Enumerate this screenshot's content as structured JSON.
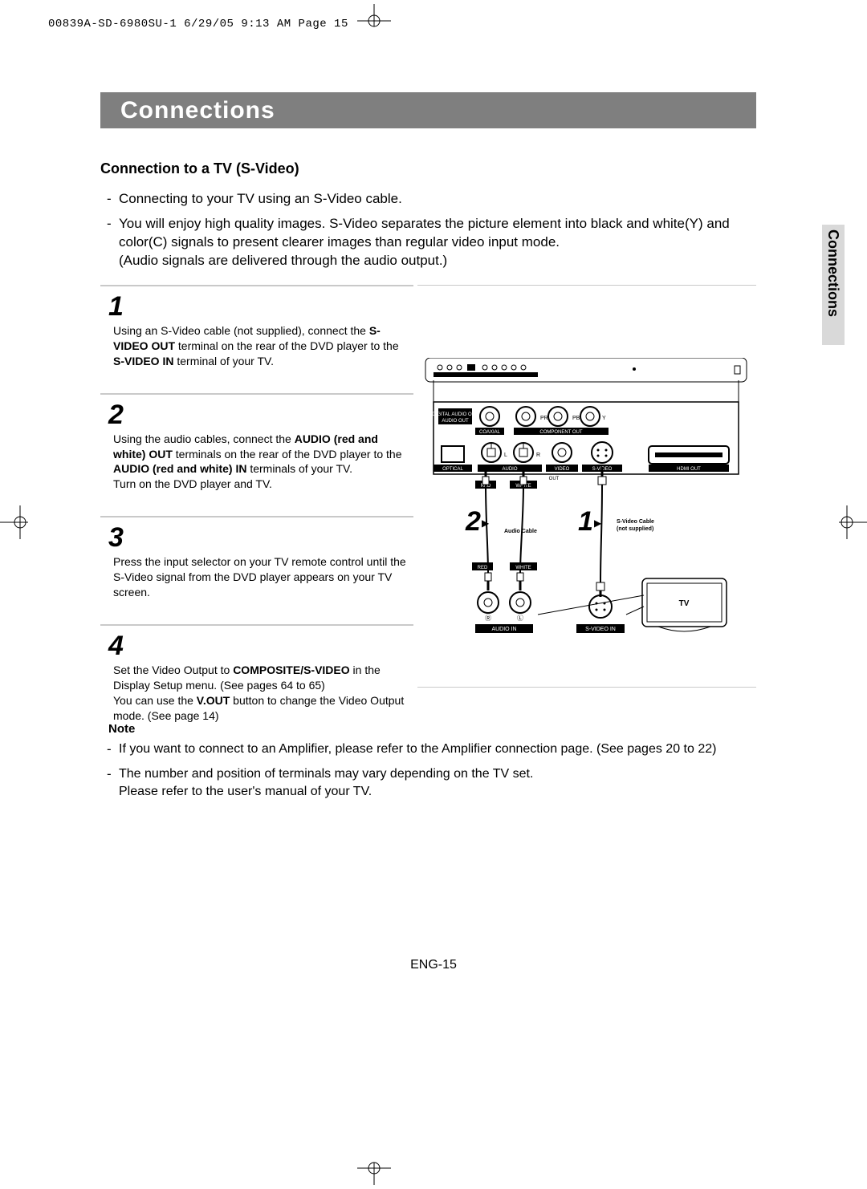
{
  "meta": {
    "header": "00839A-SD-6980SU-1  6/29/05  9:13 AM  Page 15"
  },
  "title": "Connections",
  "side_tab": "Connections",
  "subheading": "Connection to a TV (S-Video)",
  "intro": [
    "Connecting to your TV using an S-Video cable.",
    "You will enjoy high quality images. S-Video separates the picture element into black and white(Y) and color(C) signals to present clearer images than regular video input mode.\n(Audio signals are delivered through the audio output.)"
  ],
  "steps": [
    {
      "num": "1",
      "html": "Using an S-Video cable (not supplied), connect the <b>S-VIDEO OUT</b> terminal on the rear of the DVD player to the <b>S-VIDEO IN</b> terminal of your TV."
    },
    {
      "num": "2",
      "html": "Using the audio cables, connect the <b>AUDIO (red and white) OUT</b> terminals on the rear of the DVD player to the <b>AUDIO (red and white) IN</b> terminals of your TV.<br>Turn on the DVD player and TV."
    },
    {
      "num": "3",
      "html": "Press the input selector on your TV remote control until the S-Video signal from the DVD player appears on your TV screen."
    },
    {
      "num": "4",
      "html": "Set the Video Output to <b>COMPOSITE/S-VIDEO</b> in the Display Setup menu. (See pages 64 to 65)<br>You can use the <b>V.OUT</b> button to change the Video Output mode. (See page 14)"
    }
  ],
  "notes_heading": "Note",
  "notes": [
    "If you want to connect to an Amplifier, please refer to the Amplifier connection page. (See pages 20 to 22)",
    "The number and position of terminals may vary depending on the TV set.\nPlease refer to the user's manual of your TV."
  ],
  "page_number": "ENG-15",
  "diagram": {
    "labels": {
      "digital_audio_out": "DIGITAL\nAUDIO OUT",
      "coaxial": "COAXIAL",
      "optical": "OPTICAL",
      "audio": "AUDIO",
      "video": "VIDEO",
      "out": "OUT",
      "svideo": "S-VIDEO",
      "hdmi": "HDMI OUT",
      "component": "COMPONENT OUT",
      "pr": "PR",
      "pb": "PB",
      "y": "Y",
      "red": "RED",
      "white": "WHITE",
      "l": "L",
      "r": "R",
      "audio_in": "AUDIO IN",
      "svideo_in": "S-VIDEO IN",
      "audio_cable": "Audio Cable",
      "svideo_cable_1": "S-Video Cable",
      "svideo_cable_2": "(not supplied)",
      "tv": "TV",
      "step1": "1",
      "step2": "2",
      "tri": "▶"
    },
    "colors": {
      "stroke": "#000000",
      "fill_black": "#000000",
      "fill_white": "#ffffff"
    }
  }
}
